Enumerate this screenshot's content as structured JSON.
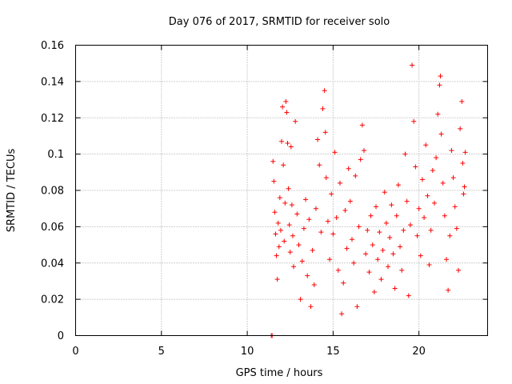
{
  "chart_data": {
    "type": "scatter",
    "title": "Day 076 of 2017, SRMTID for receiver solo",
    "xlabel": "GPS time / hours",
    "ylabel": "SRMTID / TECUs",
    "xlim": [
      0,
      24
    ],
    "ylim": [
      0,
      0.16
    ],
    "xticks": [
      0,
      5,
      10,
      15,
      20
    ],
    "xtick_labels": [
      "0",
      "5",
      "10",
      "15",
      "20"
    ],
    "yticks": [
      0,
      0.02,
      0.04,
      0.06,
      0.08,
      0.1,
      0.12,
      0.14,
      0.16
    ],
    "ytick_labels": [
      "0",
      "0.02",
      "0.04",
      "0.06",
      "0.08",
      "0.1",
      "0.12",
      "0.14",
      "0.16"
    ],
    "grid": true,
    "marker": "+",
    "color": "#ff0000",
    "series": [
      {
        "name": "solo",
        "points": [
          [
            11.4,
            0
          ],
          [
            11.45,
            0
          ],
          [
            11.5,
            0.096
          ],
          [
            11.55,
            0.085
          ],
          [
            11.6,
            0.068
          ],
          [
            11.65,
            0.056
          ],
          [
            11.7,
            0.044
          ],
          [
            11.75,
            0.031
          ],
          [
            11.8,
            0.062
          ],
          [
            11.85,
            0.049
          ],
          [
            11.9,
            0.076
          ],
          [
            11.95,
            0.058
          ],
          [
            12.0,
            0.107
          ],
          [
            12.05,
            0.126
          ],
          [
            12.1,
            0.094
          ],
          [
            12.15,
            0.052
          ],
          [
            12.2,
            0.073
          ],
          [
            12.25,
            0.129
          ],
          [
            12.3,
            0.123
          ],
          [
            12.35,
            0.106
          ],
          [
            12.4,
            0.081
          ],
          [
            12.45,
            0.061
          ],
          [
            12.5,
            0.046
          ],
          [
            12.55,
            0.104
          ],
          [
            12.6,
            0.072
          ],
          [
            12.65,
            0.055
          ],
          [
            12.7,
            0.038
          ],
          [
            12.8,
            0.118
          ],
          [
            12.9,
            0.067
          ],
          [
            13.0,
            0.05
          ],
          [
            13.1,
            0.02
          ],
          [
            13.2,
            0.041
          ],
          [
            13.3,
            0.059
          ],
          [
            13.4,
            0.075
          ],
          [
            13.5,
            0.033
          ],
          [
            13.6,
            0.064
          ],
          [
            13.7,
            0.016
          ],
          [
            13.8,
            0.047
          ],
          [
            13.9,
            0.028
          ],
          [
            14.0,
            0.07
          ],
          [
            14.1,
            0.108
          ],
          [
            14.2,
            0.094
          ],
          [
            14.3,
            0.057
          ],
          [
            14.4,
            0.125
          ],
          [
            14.5,
            0.135
          ],
          [
            14.55,
            0.112
          ],
          [
            14.6,
            0.087
          ],
          [
            14.7,
            0.063
          ],
          [
            14.8,
            0.042
          ],
          [
            14.9,
            0.078
          ],
          [
            15.0,
            0.056
          ],
          [
            15.1,
            0.101
          ],
          [
            15.2,
            0.065
          ],
          [
            15.3,
            0.036
          ],
          [
            15.4,
            0.084
          ],
          [
            15.5,
            0.012
          ],
          [
            15.6,
            0.029
          ],
          [
            15.7,
            0.069
          ],
          [
            15.8,
            0.048
          ],
          [
            15.9,
            0.092
          ],
          [
            16.0,
            0.074
          ],
          [
            16.1,
            0.053
          ],
          [
            16.2,
            0.04
          ],
          [
            16.3,
            0.088
          ],
          [
            16.4,
            0.016
          ],
          [
            16.5,
            0.06
          ],
          [
            16.6,
            0.097
          ],
          [
            16.7,
            0.116
          ],
          [
            16.8,
            0.102
          ],
          [
            16.9,
            0.045
          ],
          [
            17.0,
            0.058
          ],
          [
            17.1,
            0.035
          ],
          [
            17.2,
            0.066
          ],
          [
            17.3,
            0.05
          ],
          [
            17.4,
            0.024
          ],
          [
            17.5,
            0.071
          ],
          [
            17.6,
            0.042
          ],
          [
            17.7,
            0.057
          ],
          [
            17.8,
            0.031
          ],
          [
            17.9,
            0.047
          ],
          [
            18.0,
            0.079
          ],
          [
            18.1,
            0.062
          ],
          [
            18.2,
            0.038
          ],
          [
            18.3,
            0.054
          ],
          [
            18.4,
            0.072
          ],
          [
            18.5,
            0.045
          ],
          [
            18.6,
            0.026
          ],
          [
            18.7,
            0.066
          ],
          [
            18.8,
            0.083
          ],
          [
            18.9,
            0.049
          ],
          [
            19.0,
            0.036
          ],
          [
            19.1,
            0.058
          ],
          [
            19.2,
            0.1
          ],
          [
            19.3,
            0.074
          ],
          [
            19.4,
            0.022
          ],
          [
            19.5,
            0.061
          ],
          [
            19.6,
            0.149
          ],
          [
            19.7,
            0.118
          ],
          [
            19.8,
            0.093
          ],
          [
            19.9,
            0.055
          ],
          [
            20.0,
            0.07
          ],
          [
            20.1,
            0.044
          ],
          [
            20.2,
            0.086
          ],
          [
            20.3,
            0.065
          ],
          [
            20.4,
            0.105
          ],
          [
            20.5,
            0.077
          ],
          [
            20.6,
            0.039
          ],
          [
            20.7,
            0.058
          ],
          [
            20.8,
            0.091
          ],
          [
            20.9,
            0.073
          ],
          [
            21.0,
            0.098
          ],
          [
            21.1,
            0.122
          ],
          [
            21.2,
            0.138
          ],
          [
            21.25,
            0.143
          ],
          [
            21.3,
            0.111
          ],
          [
            21.4,
            0.084
          ],
          [
            21.5,
            0.066
          ],
          [
            21.6,
            0.042
          ],
          [
            21.7,
            0.025
          ],
          [
            21.8,
            0.055
          ],
          [
            21.9,
            0.102
          ],
          [
            22.0,
            0.087
          ],
          [
            22.1,
            0.071
          ],
          [
            22.2,
            0.059
          ],
          [
            22.3,
            0.036
          ],
          [
            22.4,
            0.114
          ],
          [
            22.5,
            0.129
          ],
          [
            22.55,
            0.095
          ],
          [
            22.6,
            0.078
          ],
          [
            22.65,
            0.082
          ],
          [
            22.7,
            0.101
          ]
        ]
      }
    ]
  }
}
